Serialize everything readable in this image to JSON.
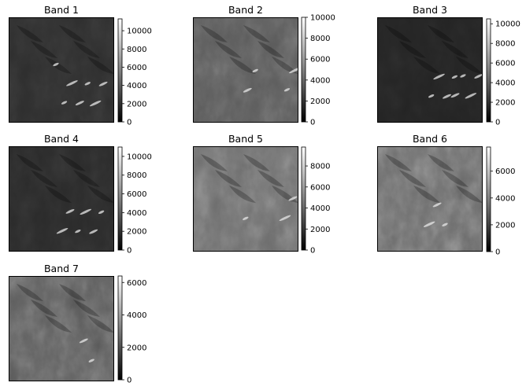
{
  "chart_data": [
    {
      "type": "heatmap",
      "title": "Band 1",
      "colormap": "gray",
      "colorbar": {
        "ticks": [
          0,
          2000,
          4000,
          6000,
          8000,
          10000
        ],
        "range": [
          0,
          11300
        ]
      }
    },
    {
      "type": "heatmap",
      "title": "Band 2",
      "colormap": "gray",
      "colorbar": {
        "ticks": [
          0,
          2000,
          4000,
          6000,
          8000,
          10000
        ],
        "range": [
          0,
          10000
        ]
      }
    },
    {
      "type": "heatmap",
      "title": "Band 3",
      "colormap": "gray",
      "colorbar": {
        "ticks": [
          0,
          2000,
          4000,
          6000,
          8000,
          10000
        ],
        "range": [
          0,
          10500
        ]
      }
    },
    {
      "type": "heatmap",
      "title": "Band 4",
      "colormap": "gray",
      "colorbar": {
        "ticks": [
          0,
          2000,
          4000,
          6000,
          8000,
          10000
        ],
        "range": [
          0,
          11000
        ]
      }
    },
    {
      "type": "heatmap",
      "title": "Band 5",
      "colormap": "gray",
      "colorbar": {
        "ticks": [
          0,
          2000,
          4000,
          6000,
          8000
        ],
        "range": [
          0,
          9800
        ]
      }
    },
    {
      "type": "heatmap",
      "title": "Band 6",
      "colormap": "gray",
      "colorbar": {
        "ticks": [
          0,
          2000,
          4000,
          6000
        ],
        "range": [
          0,
          7800
        ]
      }
    },
    {
      "type": "heatmap",
      "title": "Band 7",
      "colormap": "gray",
      "colorbar": {
        "ticks": [
          0,
          2000,
          4000,
          6000
        ],
        "range": [
          0,
          6400
        ]
      }
    }
  ]
}
